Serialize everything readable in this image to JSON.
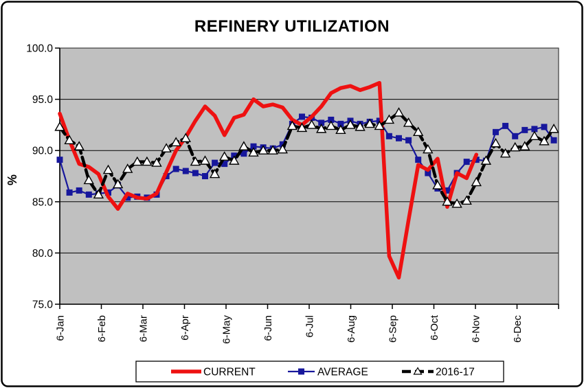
{
  "chart_data": {
    "type": "line",
    "title": "REFINERY UTILIZATION",
    "ylabel": "%",
    "ylim": [
      75.0,
      100.0
    ],
    "ytick_step": 5.0,
    "y_tick_labels": [
      "100.0",
      "95.0",
      "90.0",
      "85.0",
      "80.0",
      "75.0"
    ],
    "x_tick_labels": [
      "6-Jan",
      "6-Feb",
      "6-Mar",
      "6-Apr",
      "6-May",
      "6-Jun",
      "6-Jul",
      "6-Aug",
      "6-Sep",
      "6-Oct",
      "6-Nov",
      "6-Dec"
    ],
    "x_unit": "weekly",
    "grid": "horizontal-only",
    "legend_position": "bottom",
    "series": [
      {
        "name": "CURRENT",
        "color": "#ee1111",
        "style": "solid-thick",
        "width": 5.5,
        "dash": "",
        "marker": "none",
        "values": [
          93.6,
          91.0,
          88.7,
          88.4,
          87.7,
          85.5,
          84.3,
          85.8,
          85.4,
          85.3,
          85.8,
          87.9,
          90.0,
          91.3,
          92.9,
          94.3,
          93.4,
          91.5,
          93.2,
          93.5,
          95.0,
          94.3,
          94.5,
          94.2,
          93.0,
          92.5,
          93.3,
          94.3,
          95.6,
          96.1,
          96.3,
          95.9,
          96.2,
          96.6,
          79.7,
          77.6,
          83.2,
          88.6,
          88.1,
          89.2,
          84.5,
          87.8,
          87.3,
          89.6
        ]
      },
      {
        "name": "AVERAGE",
        "color": "#17179c",
        "style": "solid",
        "width": 2.2,
        "dash": "",
        "marker": "square",
        "values": [
          89.1,
          85.9,
          86.1,
          85.7,
          85.8,
          85.9,
          86.6,
          85.4,
          85.5,
          85.4,
          85.7,
          87.5,
          88.2,
          88.0,
          87.8,
          87.5,
          88.8,
          88.7,
          89.5,
          89.7,
          90.4,
          90.3,
          90.2,
          90.6,
          92.6,
          93.3,
          93.2,
          92.7,
          93.0,
          92.6,
          92.9,
          92.6,
          92.8,
          92.9,
          91.4,
          91.2,
          91.0,
          89.1,
          87.8,
          86.3,
          86.1,
          87.8,
          88.9,
          89.1,
          89.0,
          91.8,
          92.4,
          91.4,
          92.0,
          92.1,
          92.3,
          91.0
        ]
      },
      {
        "name": "2016-17",
        "color": "#000000",
        "style": "dashed",
        "width": 4.5,
        "dash": "13 6",
        "marker": "triangle",
        "values": [
          92.3,
          91.0,
          90.4,
          87.1,
          85.7,
          88.1,
          86.7,
          88.2,
          88.9,
          88.9,
          88.8,
          90.2,
          90.8,
          91.2,
          88.9,
          89.0,
          87.7,
          89.4,
          89.0,
          90.4,
          89.8,
          90.0,
          90.0,
          90.1,
          92.4,
          92.2,
          92.5,
          92.1,
          92.4,
          92.0,
          92.5,
          92.3,
          92.6,
          92.4,
          93.0,
          93.7,
          92.7,
          91.8,
          90.1,
          86.6,
          85.0,
          84.8,
          85.1,
          86.9,
          89.0,
          90.7,
          89.7,
          90.3,
          90.4,
          91.4,
          90.9,
          92.1
        ]
      }
    ]
  },
  "colors": {
    "plot_bg": "#c0c0c0",
    "grid_line": "#000000",
    "axis_line": "#000000",
    "figure_border": "#000000",
    "background": "#ffffff",
    "marker_triangle_fill": "#ffffff"
  }
}
